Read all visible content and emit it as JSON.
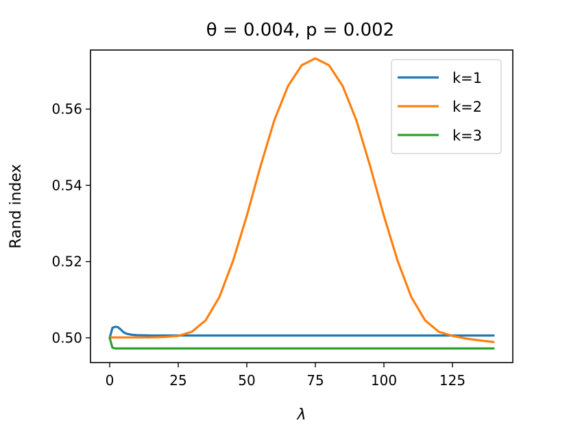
{
  "chart_data": {
    "type": "line",
    "title": "θ = 0.004, p = 0.002",
    "xlabel": "λ",
    "ylabel": "Rand index",
    "xlim": [
      -7,
      147
    ],
    "ylim": [
      0.4935,
      0.5755
    ],
    "xticks": [
      0,
      25,
      50,
      75,
      100,
      125
    ],
    "xtick_labels": [
      "0",
      "25",
      "50",
      "75",
      "100",
      "125"
    ],
    "yticks": [
      0.5,
      0.52,
      0.54,
      0.56
    ],
    "ytick_labels": [
      "0.50",
      "0.52",
      "0.54",
      "0.56"
    ],
    "grid": false,
    "legend_position": "top-right",
    "series": [
      {
        "name": "k=1",
        "color": "#1f77b4",
        "x": [
          0,
          1,
          2,
          3,
          4,
          5,
          6,
          8,
          10,
          15,
          20,
          140
        ],
        "y": [
          0.5,
          0.5026,
          0.5029,
          0.5028,
          0.5022,
          0.5015,
          0.5011,
          0.5008,
          0.5007,
          0.5006,
          0.5006,
          0.5006
        ]
      },
      {
        "name": "k=2",
        "color": "#ff7f0e",
        "x": [
          0,
          10,
          15,
          20,
          25,
          30,
          35,
          40,
          45,
          50,
          55,
          60,
          65,
          70,
          75,
          80,
          85,
          90,
          95,
          100,
          105,
          110,
          115,
          120,
          125,
          130,
          135,
          140
        ],
        "y": [
          0.5001,
          0.5001,
          0.5001,
          0.5002,
          0.5005,
          0.5016,
          0.5046,
          0.5107,
          0.5202,
          0.532,
          0.545,
          0.557,
          0.566,
          0.5715,
          0.5733,
          0.5715,
          0.566,
          0.557,
          0.545,
          0.532,
          0.5202,
          0.5107,
          0.5046,
          0.5016,
          0.5005,
          0.4998,
          0.4993,
          0.4989
        ]
      },
      {
        "name": "k=3",
        "color": "#2ca02c",
        "x": [
          0,
          1,
          2,
          140
        ],
        "y": [
          0.5,
          0.4974,
          0.4972,
          0.4972
        ]
      }
    ]
  }
}
